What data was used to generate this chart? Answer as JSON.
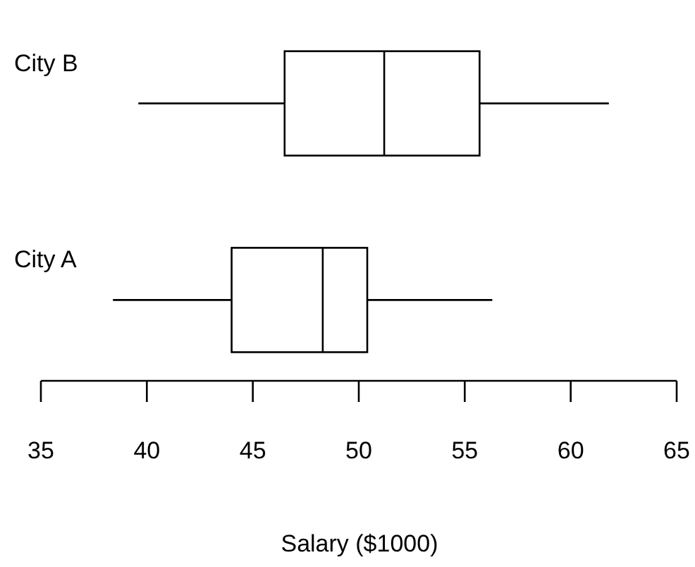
{
  "chart_data": {
    "type": "box",
    "orientation": "horizontal",
    "xlabel": "Salary ($1000)",
    "categories": [
      "City B",
      "City A"
    ],
    "boxes": [
      {
        "low": 39.6,
        "q1": 46.5,
        "median": 51.2,
        "q3": 55.7,
        "high": 61.8
      },
      {
        "low": 38.4,
        "q1": 44.0,
        "median": 48.3,
        "q3": 50.4,
        "high": 56.3
      }
    ],
    "xlim": [
      35,
      65
    ],
    "xticks": [
      35,
      40,
      45,
      50,
      55,
      60,
      65
    ]
  }
}
